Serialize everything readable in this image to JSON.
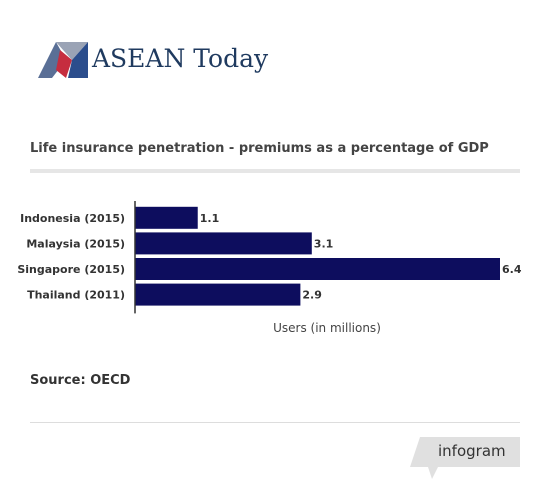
{
  "brand": {
    "name": "ASEAN Today",
    "colors": {
      "navy": "#1f3a5f",
      "blue": "#2b4d8c",
      "red": "#c62d3f",
      "gray": "#9aa3b5"
    }
  },
  "chart_data": {
    "type": "bar",
    "orientation": "horizontal",
    "title": "Life insurance penetration - premiums as a percentage of GDP",
    "categories": [
      "Indonesia (2015)",
      "Malaysia (2015)",
      "Singapore (2015)",
      "Thailand (2011)"
    ],
    "values": [
      1.1,
      3.1,
      6.4,
      2.9
    ],
    "data_labels": [
      "1.1",
      "3.1",
      "6.4",
      "2.9"
    ],
    "xlabel": "Users (in millions)",
    "ylabel": "",
    "xlim": [
      0,
      6.4
    ],
    "grid": false,
    "bar_color": "#0d0d5e"
  },
  "source": "Source: OECD",
  "footer": {
    "badge_label": "infogram",
    "badge_color": "#e0e0e0"
  }
}
